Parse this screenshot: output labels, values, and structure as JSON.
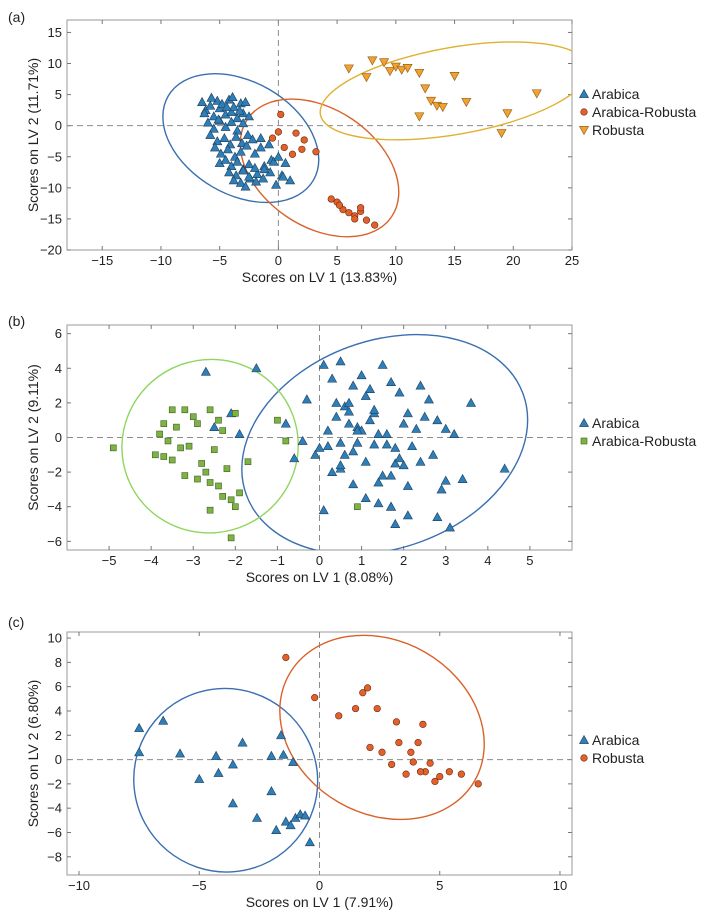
{
  "chart_data": [
    {
      "panel_label": "(a)",
      "type": "scatter",
      "xlabel": "Scores on LV 1 (13.83%)",
      "ylabel": "Scores on LV 2 (11.71%)",
      "xlim": [
        -18,
        25
      ],
      "ylim": [
        -20,
        17
      ],
      "xticks": [
        -15,
        -10,
        -5,
        0,
        5,
        10,
        15,
        20,
        25
      ],
      "yticks": [
        -20,
        -15,
        -10,
        -5,
        0,
        5,
        10,
        15
      ],
      "reference_lines": {
        "x": 0,
        "y": 0,
        "style": "dashed"
      },
      "legend_position": "right",
      "series": [
        {
          "name": "Arabica",
          "marker": "triangle-up",
          "color": "#2e7fb8",
          "x": [
            -6.5,
            -6.2,
            -5.8,
            -5.5,
            -5.2,
            -5.0,
            -4.8,
            -4.5,
            -4.2,
            -4.0,
            -3.8,
            -3.5,
            -3.2,
            -3.0,
            -6.0,
            -5.5,
            -5.0,
            -4.5,
            -4.0,
            -3.5,
            -3.0,
            -2.5,
            -5.8,
            -5.2,
            -4.6,
            -4.1,
            -3.6,
            -3.1,
            -2.6,
            -6.3,
            -5.7,
            -5.1,
            -4.4,
            -3.9,
            -3.3,
            -2.8,
            -5.4,
            -4.9,
            -4.3,
            -3.7,
            -3.2,
            -2.7,
            -2.2,
            -5.0,
            -4.5,
            -4.0,
            -3.5,
            -3.0,
            -2.5,
            -2.0,
            -1.5,
            -4.2,
            -3.6,
            -3.0,
            -2.4,
            -1.8,
            -1.2,
            -0.6,
            -3.8,
            -3.2,
            -2.5,
            -1.9,
            -1.3,
            -0.7,
            -0.2,
            0.3,
            -2.8,
            -2.0,
            -1.2,
            -0.4,
            0.4,
            1.0,
            -1.5,
            -0.8,
            0.0,
            0.6
          ],
          "y": [
            3.8,
            2.5,
            3.2,
            1.5,
            4.0,
            2.8,
            3.5,
            1.8,
            4.2,
            2.2,
            3.0,
            1.2,
            3.6,
            2.0,
            0.5,
            -0.5,
            0.8,
            -0.2,
            0.6,
            -0.8,
            0.4,
            1.5,
            -1.5,
            -2.5,
            -2.0,
            -3.0,
            -1.8,
            -2.8,
            -1.5,
            2.0,
            4.5,
            1.0,
            3.0,
            4.6,
            2.4,
            3.8,
            -3.5,
            -4.5,
            -3.8,
            -5.0,
            -4.2,
            -3.2,
            -2.2,
            -6.0,
            -5.5,
            -6.5,
            -5.8,
            -7.0,
            -6.2,
            -4.5,
            -3.5,
            -7.5,
            -8.0,
            -7.2,
            -8.5,
            -7.8,
            -6.5,
            -5.5,
            -8.8,
            -9.2,
            -8.2,
            -9.0,
            -8.5,
            -7.5,
            -9.5,
            -8.0,
            -9.8,
            -6.8,
            -7.0,
            -5.8,
            -8.2,
            -8.8,
            -2.0,
            -3.0,
            -5.0,
            -6.0
          ]
        },
        {
          "name": "Arabica-Robusta",
          "marker": "circle",
          "color": "#e2612b",
          "x": [
            -0.5,
            0.2,
            1.5,
            2.2,
            0.5,
            1.2,
            2.0,
            3.2,
            0.0,
            4.5,
            5.0,
            5.5,
            6.0,
            5.2,
            6.5,
            7.0,
            7.5,
            8.2,
            7.0,
            6.5
          ],
          "y": [
            -2.0,
            1.8,
            -1.2,
            -2.3,
            -3.5,
            -4.6,
            -3.8,
            -4.2,
            -1.0,
            -11.8,
            -12.3,
            -13.5,
            -14.0,
            -12.8,
            -14.5,
            -13.8,
            -15.2,
            -16.0,
            -13.2,
            -15.0
          ]
        },
        {
          "name": "Robusta",
          "marker": "triangle-down",
          "color": "#f2a031",
          "x": [
            6.0,
            7.5,
            8.0,
            9.0,
            9.5,
            10.0,
            10.5,
            11.0,
            12.0,
            12.5,
            13.0,
            13.5,
            14.0,
            15.0,
            16.0,
            19.0,
            19.5,
            22.0,
            12.0
          ],
          "y": [
            9.2,
            7.8,
            10.5,
            10.2,
            8.8,
            9.5,
            9.0,
            9.3,
            8.5,
            6.0,
            4.0,
            3.2,
            3.0,
            8.0,
            3.8,
            -1.2,
            2.0,
            5.2,
            1.5
          ]
        }
      ],
      "ellipses": [
        {
          "series": "Arabica",
          "cx": -3.2,
          "cy": -2.0,
          "rx": 4.8,
          "ry": 13.5,
          "angle": -60,
          "color": "#3a6fb0"
        },
        {
          "series": "Arabica-Robusta",
          "cx": 3.5,
          "cy": -6.8,
          "rx": 5.0,
          "ry": 14.0,
          "angle": -56,
          "color": "#d9622a"
        },
        {
          "series": "Robusta",
          "cx": 15.0,
          "cy": 5.6,
          "rx": 11.6,
          "ry": 7.0,
          "angle": -10,
          "color": "#e0b030"
        }
      ]
    },
    {
      "panel_label": "(b)",
      "type": "scatter",
      "xlabel": "Scores on LV 1 (8.08%)",
      "ylabel": "Scores on LV 2 (9.11%)",
      "xlim": [
        -6,
        6
      ],
      "ylim": [
        -6.5,
        6.5
      ],
      "xticks": [
        -5,
        -4,
        -3,
        -2,
        -1,
        0,
        1,
        2,
        3,
        4,
        5
      ],
      "yticks": [
        -6,
        -4,
        -2,
        0,
        2,
        4,
        6
      ],
      "reference_lines": {
        "x": 0,
        "y": 0,
        "style": "dashed"
      },
      "legend_position": "right",
      "series": [
        {
          "name": "Arabica",
          "marker": "triangle-up",
          "color": "#2e7fb8",
          "x": [
            -2.7,
            -2.1,
            -2.5,
            -1.5,
            -0.8,
            -1.9,
            -0.6,
            -0.3,
            0.1,
            0.3,
            0.5,
            0.6,
            0.8,
            1.0,
            1.2,
            1.3,
            1.5,
            1.7,
            1.9,
            2.1,
            2.3,
            2.5,
            2.7,
            2.9,
            3.1,
            0.2,
            0.4,
            0.7,
            0.9,
            1.1,
            1.4,
            1.6,
            1.8,
            2.0,
            2.2,
            2.4,
            2.6,
            2.8,
            3.0,
            3.2,
            3.6,
            4.4,
            0.0,
            0.3,
            0.6,
            0.9,
            1.2,
            1.5,
            1.8,
            2.1,
            2.4,
            0.5,
            0.8,
            1.1,
            1.4,
            1.7,
            2.0,
            -0.4,
            -0.1,
            0.2,
            0.5,
            0.8,
            1.1,
            1.4,
            1.7,
            0.4,
            0.7,
            1.0,
            1.3,
            1.6,
            1.9,
            3.4,
            0.1,
            0.5,
            0.9,
            1.3,
            0.7,
            1.7,
            2.1,
            2.8,
            3.0,
            1.8
          ],
          "y": [
            3.8,
            1.4,
            0.6,
            4.0,
            0.8,
            0.2,
            -1.2,
            2.2,
            4.2,
            3.4,
            4.4,
            1.8,
            3.0,
            3.6,
            2.8,
            1.4,
            4.2,
            3.2,
            2.6,
            1.4,
            0.5,
            1.2,
            -1.0,
            -3.0,
            -5.2,
            0.4,
            1.2,
            2.0,
            0.6,
            2.4,
            0.2,
            -0.4,
            -1.5,
            0.8,
            -0.5,
            3.0,
            2.2,
            1.0,
            -2.5,
            0.2,
            2.0,
            -1.8,
            -0.6,
            -2.0,
            -1.0,
            -0.3,
            1.0,
            -2.2,
            -0.6,
            -2.8,
            -1.4,
            -1.8,
            -2.7,
            -3.5,
            -3.8,
            -2.2,
            -1.6,
            -0.2,
            -1.0,
            -0.5,
            -1.6,
            -0.8,
            -1.4,
            -2.6,
            -4.0,
            2.0,
            0.8,
            0.4,
            1.6,
            0.2,
            -1.2,
            -2.4,
            -4.2,
            -0.3,
            0.4,
            -0.4,
            1.5,
            -4.0,
            -4.5,
            -4.6,
            0.5,
            -5.0
          ],
          "note": ""
        },
        {
          "name": "Arabica-Robusta",
          "marker": "square",
          "color": "#7cb342",
          "x": [
            -4.9,
            -3.8,
            -3.5,
            -3.4,
            -3.2,
            -3.0,
            -2.9,
            -2.6,
            -2.4,
            -2.3,
            -2.0,
            -3.7,
            -3.6,
            -3.3,
            -3.1,
            -2.8,
            -2.5,
            -2.2,
            -3.9,
            -3.7,
            -3.5,
            -3.2,
            -2.9,
            -2.6,
            -2.3,
            -2.0,
            -1.9,
            -2.7,
            -2.4,
            -2.1,
            -1.7,
            -0.8,
            -1.0,
            -2.6,
            -2.1,
            0.9
          ],
          "y": [
            -0.6,
            0.2,
            1.6,
            0.6,
            1.6,
            1.2,
            0.8,
            1.6,
            1.0,
            0.4,
            1.4,
            0.8,
            -0.2,
            -0.6,
            -0.5,
            -1.5,
            -0.7,
            -1.8,
            -1.0,
            -1.1,
            -1.3,
            -2.2,
            -2.4,
            -2.6,
            -3.4,
            -4.0,
            -3.2,
            -2.0,
            -2.8,
            -3.6,
            -1.4,
            -0.2,
            1.0,
            -4.2,
            -5.8,
            -4.0
          ]
        }
      ],
      "ellipses": [
        {
          "series": "Arabica",
          "cx": 1.55,
          "cy": -0.4,
          "rx": 3.5,
          "ry": 6.0,
          "angle": -20,
          "color": "#3a6fb0"
        },
        {
          "series": "Arabica-Robusta",
          "cx": -2.6,
          "cy": -0.5,
          "rx": 2.1,
          "ry": 5.0,
          "angle": -20,
          "color": "#8fd65e"
        }
      ]
    },
    {
      "panel_label": "(c)",
      "type": "scatter",
      "xlabel": "Scores on LV 1 (7.91%)",
      "ylabel": "Scores on LV 2 (6.80%)",
      "xlim": [
        -10.5,
        10.5
      ],
      "ylim": [
        -9.5,
        10.5
      ],
      "xticks": [
        -10,
        -5,
        0,
        5,
        10
      ],
      "yticks": [
        -8,
        -6,
        -4,
        -2,
        0,
        2,
        4,
        6,
        8,
        10
      ],
      "reference_lines": {
        "x": 0,
        "y": 0,
        "style": "dashed"
      },
      "legend_position": "right",
      "series": [
        {
          "name": "Arabica",
          "marker": "triangle-up",
          "color": "#2e7fb8",
          "x": [
            -7.5,
            -7.5,
            -6.5,
            -5.8,
            -5.0,
            -4.3,
            -4.2,
            -3.6,
            -3.6,
            -3.2,
            -2.6,
            -2.0,
            -2.0,
            -1.8,
            -1.5,
            -1.4,
            -1.2,
            -1.0,
            -0.8,
            -0.6,
            -0.4,
            -1.6,
            -1.1
          ],
          "y": [
            2.6,
            0.6,
            3.2,
            0.5,
            -1.6,
            0.3,
            -1.1,
            -0.4,
            -3.6,
            1.4,
            -4.8,
            0.3,
            -2.6,
            -5.8,
            0.4,
            -5.1,
            -5.4,
            -4.8,
            -4.5,
            -4.6,
            -6.8,
            2.0,
            -0.2
          ]
        },
        {
          "name": "Robusta",
          "marker": "circle",
          "color": "#e2612b",
          "x": [
            -1.4,
            -0.2,
            0.8,
            1.5,
            1.8,
            2.0,
            2.1,
            2.6,
            3.0,
            3.2,
            3.3,
            3.6,
            3.9,
            4.1,
            4.3,
            4.4,
            4.6,
            4.8,
            5.0,
            5.4,
            5.9,
            6.6,
            3.8,
            2.4,
            4.2
          ],
          "y": [
            8.4,
            5.1,
            3.6,
            4.2,
            5.5,
            5.9,
            1.0,
            0.6,
            -0.4,
            3.1,
            1.4,
            -1.2,
            -0.2,
            1.4,
            2.9,
            -1.0,
            -0.3,
            -1.8,
            -1.4,
            -1.0,
            -1.2,
            -2.0,
            0.6,
            4.2,
            -1.0
          ]
        }
      ],
      "ellipses": [
        {
          "series": "Arabica",
          "cx": -3.9,
          "cy": -1.7,
          "rx": 3.8,
          "ry": 7.6,
          "angle": -50,
          "color": "#3a6fb0"
        },
        {
          "series": "Robusta",
          "cx": 2.6,
          "cy": 2.65,
          "rx": 3.6,
          "ry": 8.8,
          "angle": -60,
          "color": "#d9622a"
        }
      ]
    }
  ]
}
